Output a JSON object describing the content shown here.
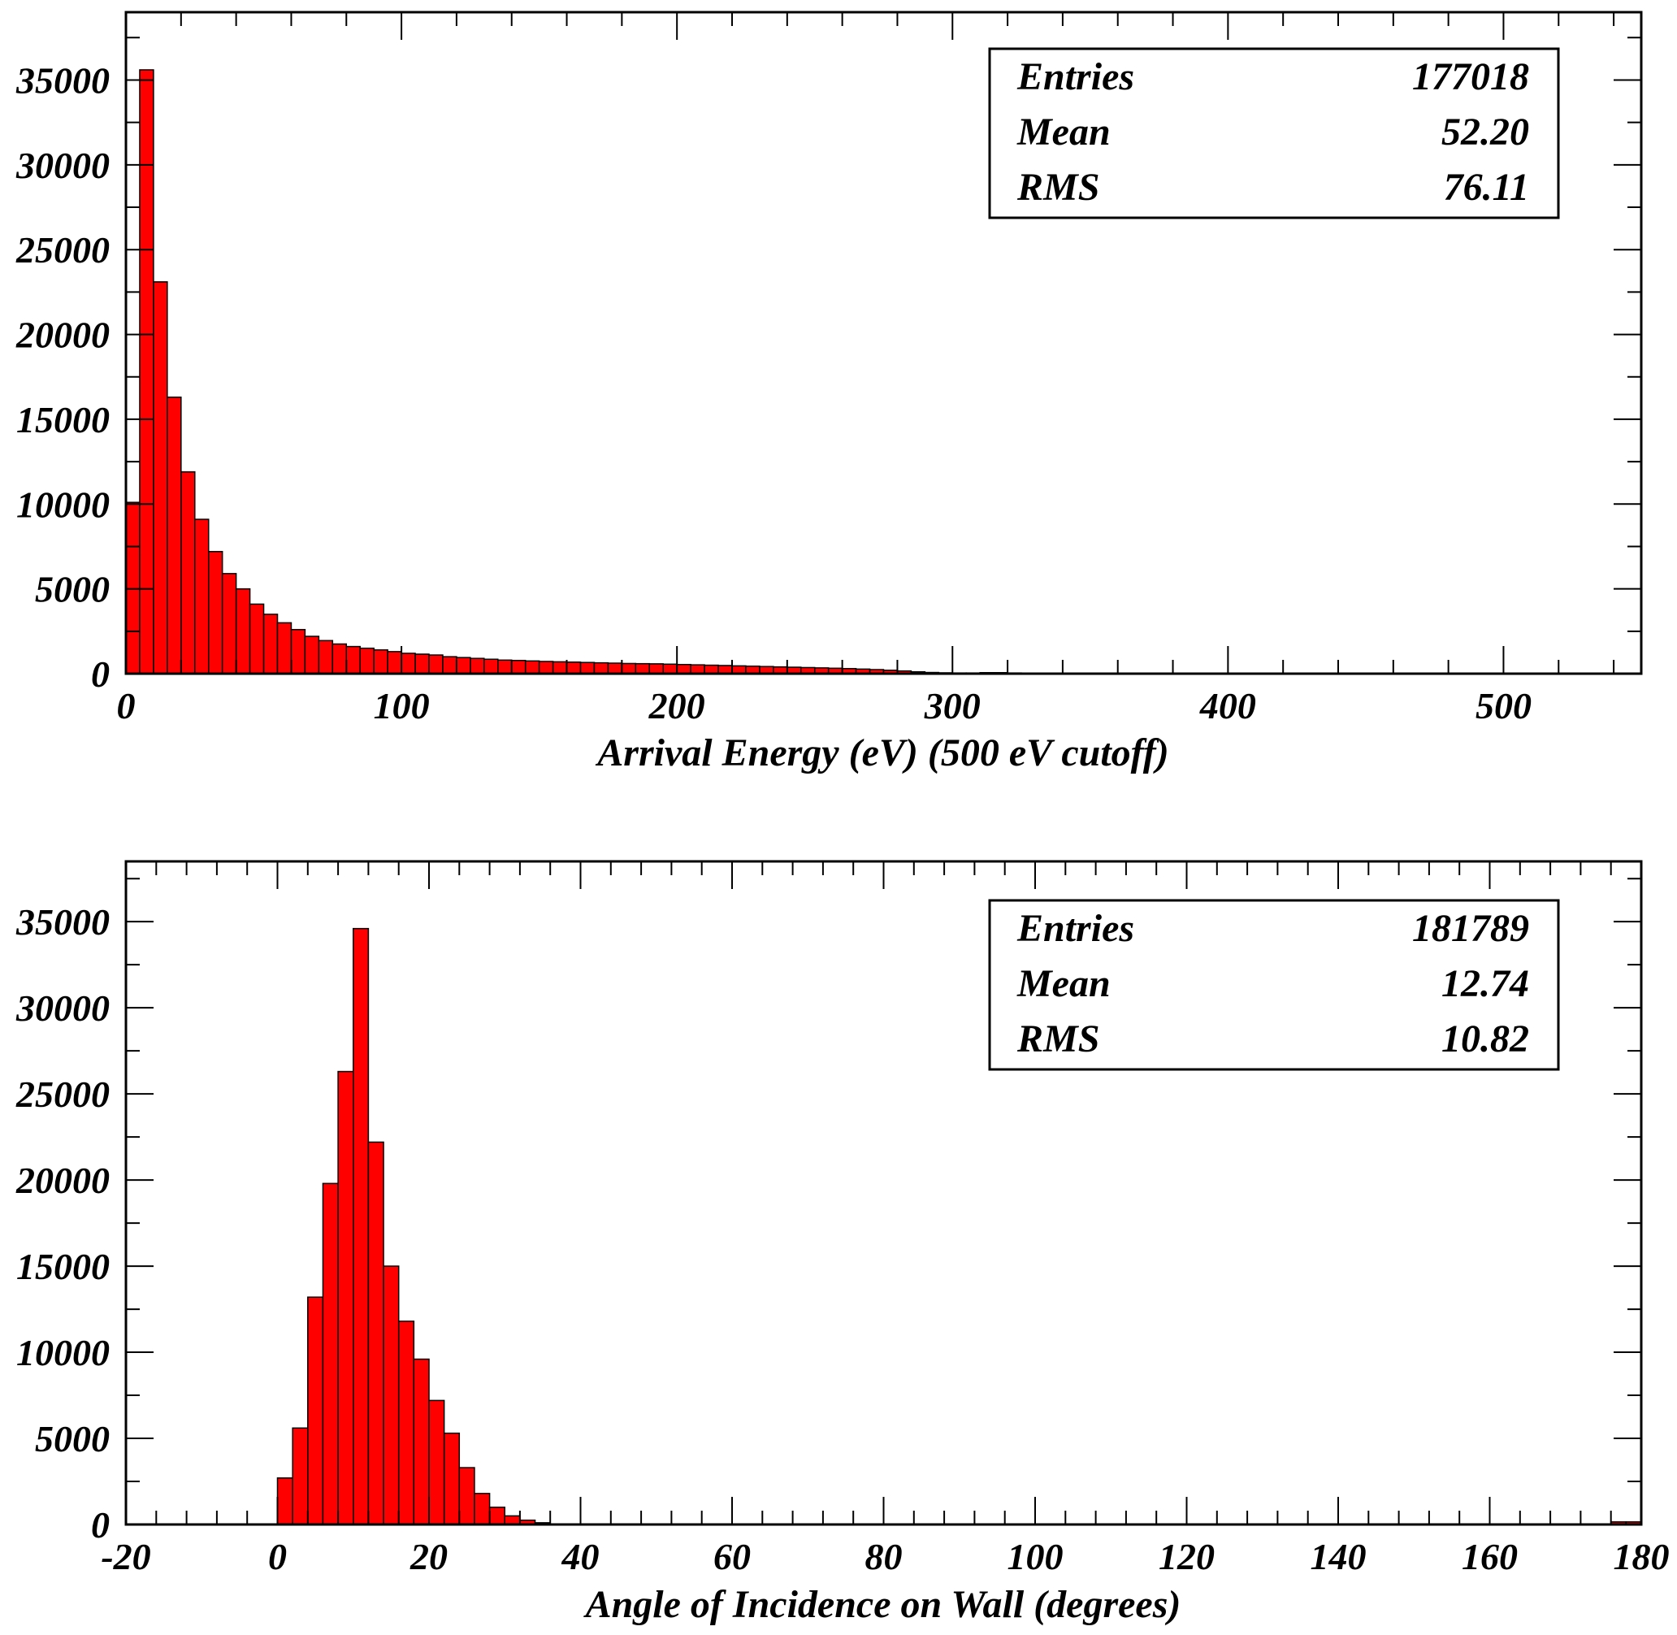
{
  "colors": {
    "bar_fill": "#ff0000",
    "bar_stroke": "#000000",
    "frame": "#000000",
    "title": "#1010d0",
    "background": "#ffffff"
  },
  "figure_title": "",
  "chart_data": [
    {
      "type": "bar",
      "xlabel": "Arrival Energy (eV) (500 eV cutoff)",
      "ylabel": "",
      "xlim": [
        0,
        550
      ],
      "ylim": [
        0,
        39000
      ],
      "bin_width": 5,
      "x_ticks": [
        0,
        100,
        200,
        300,
        400,
        500
      ],
      "y_ticks": [
        0,
        5000,
        10000,
        15000,
        20000,
        25000,
        30000,
        35000
      ],
      "x_tick_labels": [
        "0",
        "100",
        "200",
        "300",
        "400",
        "500"
      ],
      "y_tick_labels": [
        "0",
        "5000",
        "10000",
        "15000",
        "20000",
        "25000",
        "30000",
        "35000"
      ],
      "grid": false,
      "legend": "none",
      "stats": [
        {
          "label": "Entries",
          "value": "177018"
        },
        {
          "label": "Mean",
          "value": "52.20"
        },
        {
          "label": "RMS",
          "value": "76.11"
        }
      ],
      "bins": [
        {
          "x": 0,
          "y": 10100
        },
        {
          "x": 5,
          "y": 35600
        },
        {
          "x": 10,
          "y": 23100
        },
        {
          "x": 15,
          "y": 16300
        },
        {
          "x": 20,
          "y": 11900
        },
        {
          "x": 25,
          "y": 9100
        },
        {
          "x": 30,
          "y": 7200
        },
        {
          "x": 35,
          "y": 5900
        },
        {
          "x": 40,
          "y": 5000
        },
        {
          "x": 45,
          "y": 4100
        },
        {
          "x": 50,
          "y": 3500
        },
        {
          "x": 55,
          "y": 3000
        },
        {
          "x": 60,
          "y": 2600
        },
        {
          "x": 65,
          "y": 2200
        },
        {
          "x": 70,
          "y": 1950
        },
        {
          "x": 75,
          "y": 1750
        },
        {
          "x": 80,
          "y": 1600
        },
        {
          "x": 85,
          "y": 1500
        },
        {
          "x": 90,
          "y": 1400
        },
        {
          "x": 95,
          "y": 1300
        },
        {
          "x": 100,
          "y": 1200
        },
        {
          "x": 105,
          "y": 1150
        },
        {
          "x": 110,
          "y": 1100
        },
        {
          "x": 115,
          "y": 1000
        },
        {
          "x": 120,
          "y": 950
        },
        {
          "x": 125,
          "y": 900
        },
        {
          "x": 130,
          "y": 850
        },
        {
          "x": 135,
          "y": 800
        },
        {
          "x": 140,
          "y": 780
        },
        {
          "x": 145,
          "y": 750
        },
        {
          "x": 150,
          "y": 720
        },
        {
          "x": 155,
          "y": 700
        },
        {
          "x": 160,
          "y": 680
        },
        {
          "x": 165,
          "y": 660
        },
        {
          "x": 170,
          "y": 640
        },
        {
          "x": 175,
          "y": 620
        },
        {
          "x": 180,
          "y": 600
        },
        {
          "x": 185,
          "y": 590
        },
        {
          "x": 190,
          "y": 580
        },
        {
          "x": 195,
          "y": 560
        },
        {
          "x": 200,
          "y": 540
        },
        {
          "x": 205,
          "y": 520
        },
        {
          "x": 210,
          "y": 500
        },
        {
          "x": 215,
          "y": 480
        },
        {
          "x": 220,
          "y": 460
        },
        {
          "x": 225,
          "y": 440
        },
        {
          "x": 230,
          "y": 420
        },
        {
          "x": 235,
          "y": 400
        },
        {
          "x": 240,
          "y": 380
        },
        {
          "x": 245,
          "y": 360
        },
        {
          "x": 250,
          "y": 340
        },
        {
          "x": 255,
          "y": 320
        },
        {
          "x": 260,
          "y": 300
        },
        {
          "x": 265,
          "y": 270
        },
        {
          "x": 270,
          "y": 240
        },
        {
          "x": 275,
          "y": 200
        },
        {
          "x": 280,
          "y": 160
        },
        {
          "x": 285,
          "y": 110
        },
        {
          "x": 290,
          "y": 70
        },
        {
          "x": 295,
          "y": 50
        },
        {
          "x": 300,
          "y": 40
        },
        {
          "x": 305,
          "y": 40
        },
        {
          "x": 310,
          "y": 60
        },
        {
          "x": 315,
          "y": 60
        },
        {
          "x": 320,
          "y": 40
        },
        {
          "x": 325,
          "y": 30
        },
        {
          "x": 330,
          "y": 30
        },
        {
          "x": 335,
          "y": 30
        },
        {
          "x": 340,
          "y": 30
        },
        {
          "x": 345,
          "y": 30
        },
        {
          "x": 350,
          "y": 30
        },
        {
          "x": 355,
          "y": 30
        },
        {
          "x": 360,
          "y": 30
        },
        {
          "x": 365,
          "y": 30
        },
        {
          "x": 370,
          "y": 30
        },
        {
          "x": 375,
          "y": 30
        },
        {
          "x": 380,
          "y": 30
        },
        {
          "x": 385,
          "y": 30
        },
        {
          "x": 390,
          "y": 30
        },
        {
          "x": 395,
          "y": 30
        },
        {
          "x": 400,
          "y": 30
        },
        {
          "x": 405,
          "y": 30
        },
        {
          "x": 410,
          "y": 30
        },
        {
          "x": 415,
          "y": 30
        },
        {
          "x": 420,
          "y": 30
        },
        {
          "x": 425,
          "y": 30
        },
        {
          "x": 430,
          "y": 30
        },
        {
          "x": 435,
          "y": 30
        },
        {
          "x": 440,
          "y": 30
        },
        {
          "x": 445,
          "y": 30
        },
        {
          "x": 450,
          "y": 30
        },
        {
          "x": 455,
          "y": 30
        },
        {
          "x": 460,
          "y": 30
        },
        {
          "x": 465,
          "y": 30
        },
        {
          "x": 470,
          "y": 30
        },
        {
          "x": 475,
          "y": 30
        },
        {
          "x": 480,
          "y": 30
        },
        {
          "x": 485,
          "y": 30
        },
        {
          "x": 490,
          "y": 30
        },
        {
          "x": 495,
          "y": 30
        }
      ]
    },
    {
      "type": "bar",
      "xlabel": "Angle of Incidence on Wall (degrees)",
      "ylabel": "",
      "xlim": [
        -20,
        180
      ],
      "ylim": [
        0,
        38500
      ],
      "bin_width": 2,
      "x_ticks": [
        -20,
        0,
        20,
        40,
        60,
        80,
        100,
        120,
        140,
        160,
        180
      ],
      "y_ticks": [
        0,
        5000,
        10000,
        15000,
        20000,
        25000,
        30000,
        35000
      ],
      "x_tick_labels": [
        "-20",
        "0",
        "20",
        "40",
        "60",
        "80",
        "100",
        "120",
        "140",
        "160",
        "180"
      ],
      "y_tick_labels": [
        "0",
        "5000",
        "10000",
        "15000",
        "20000",
        "25000",
        "30000",
        "35000"
      ],
      "grid": false,
      "legend": "none",
      "stats": [
        {
          "label": "Entries",
          "value": "181789"
        },
        {
          "label": "Mean",
          "value": "12.74"
        },
        {
          "label": "RMS",
          "value": "10.82"
        }
      ],
      "bins": [
        {
          "x": 0,
          "y": 2700
        },
        {
          "x": 2,
          "y": 5600
        },
        {
          "x": 4,
          "y": 13200
        },
        {
          "x": 6,
          "y": 19800
        },
        {
          "x": 8,
          "y": 26300
        },
        {
          "x": 10,
          "y": 34600
        },
        {
          "x": 12,
          "y": 22200
        },
        {
          "x": 14,
          "y": 15000
        },
        {
          "x": 16,
          "y": 11800
        },
        {
          "x": 18,
          "y": 9600
        },
        {
          "x": 20,
          "y": 7200
        },
        {
          "x": 22,
          "y": 5300
        },
        {
          "x": 24,
          "y": 3300
        },
        {
          "x": 26,
          "y": 1800
        },
        {
          "x": 28,
          "y": 1000
        },
        {
          "x": 30,
          "y": 500
        },
        {
          "x": 32,
          "y": 250
        },
        {
          "x": 34,
          "y": 100
        },
        {
          "x": 176,
          "y": 150
        },
        {
          "x": 178,
          "y": 150
        }
      ]
    }
  ]
}
